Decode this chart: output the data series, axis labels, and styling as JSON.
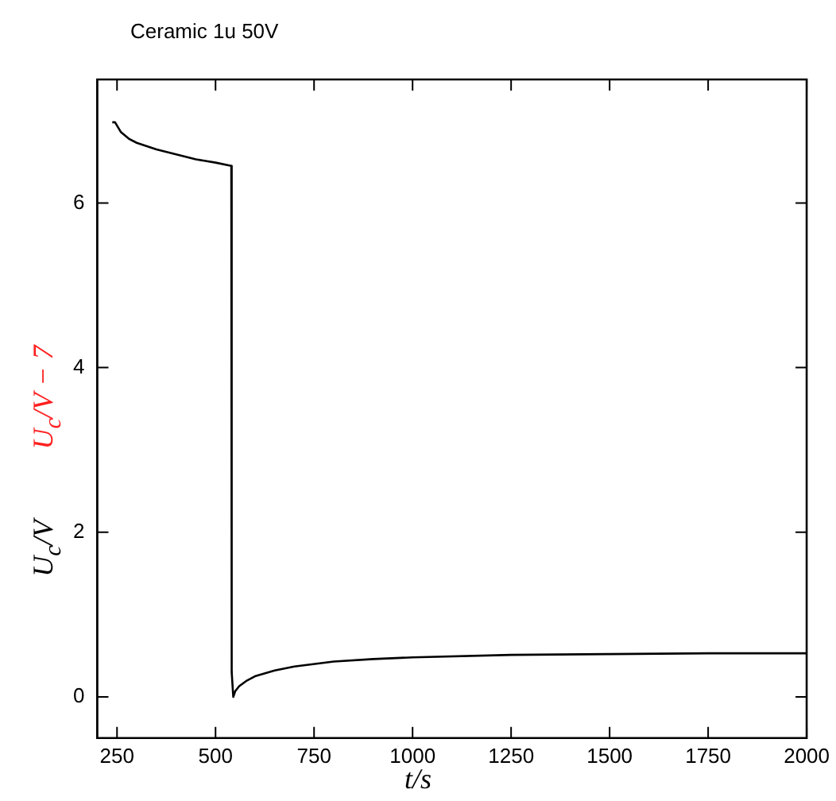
{
  "chart_data": {
    "type": "line",
    "title": "Ceramic 1u 50V",
    "xlabel": "t/s",
    "ylabel": "U$_{c}$/V",
    "annotations": [
      "U$_{c}$/V − 7"
    ],
    "x": [
      238,
      245,
      260,
      280,
      300,
      350,
      400,
      450,
      500,
      540,
      541,
      545,
      550,
      560,
      580,
      600,
      650,
      700,
      800,
      900,
      1000,
      1250,
      1500,
      1750,
      2000
    ],
    "series": [
      {
        "color": "#000000",
        "values": [
          6.98,
          6.98,
          6.86,
          6.78,
          6.73,
          6.65,
          6.59,
          6.53,
          6.49,
          6.45,
          0.3,
          0,
          0.07,
          0.13,
          0.2,
          0.25,
          0.32,
          0.37,
          0.43,
          0.46,
          0.48,
          0.51,
          0.52,
          0.53,
          0.53
        ]
      }
    ],
    "xlim": [
      200,
      2000
    ],
    "xticks": [
      250,
      500,
      750,
      1000,
      1250,
      1500,
      1750,
      2000
    ],
    "ylim": [
      -0.5,
      7.5
    ],
    "yticks": [
      0,
      2,
      4,
      6
    ],
    "grid": false,
    "legend": false,
    "marker": "none",
    "line_style": "solid"
  }
}
